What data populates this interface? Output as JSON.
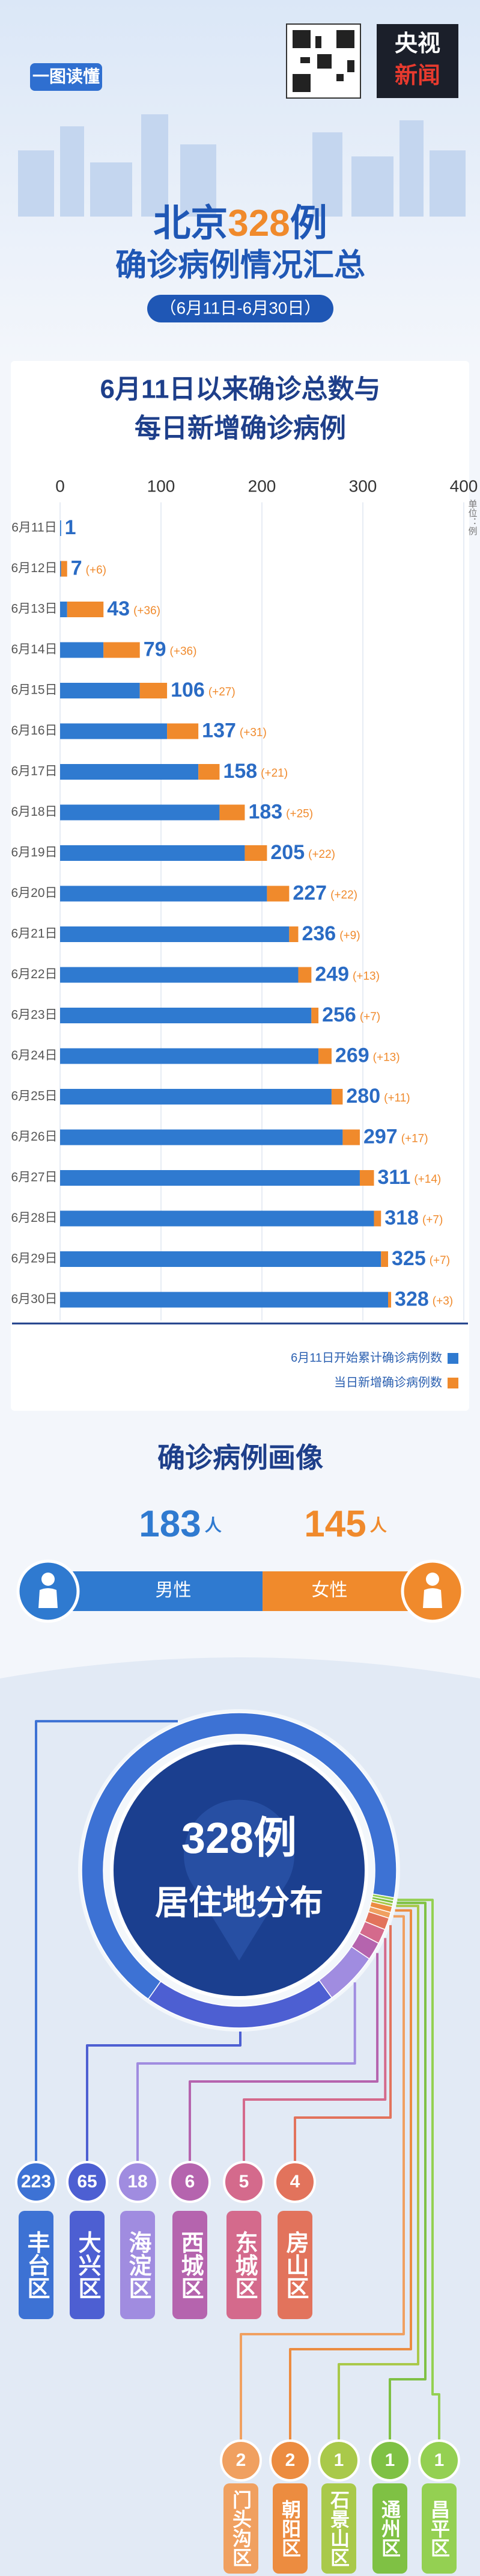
{
  "header": {
    "badge": "一图读懂",
    "logo_top": "央视",
    "logo_bottom": "新闻",
    "title_prefix": "北京",
    "title_number": "328",
    "title_suffix": "例",
    "subtitle": "确诊病例情况汇总",
    "date_range": "（6月11日-6月30日）"
  },
  "chart_data": {
    "type": "bar",
    "orientation": "horizontal",
    "stacked": true,
    "title": [
      "6月11日以来确诊总数与",
      "每日新增确诊病例"
    ],
    "unit": "单位：例",
    "categories": [
      "6月11日",
      "6月12日",
      "6月13日",
      "6月14日",
      "6月15日",
      "6月16日",
      "6月17日",
      "6月18日",
      "6月19日",
      "6月20日",
      "6月21日",
      "6月22日",
      "6月23日",
      "6月24日",
      "6月25日",
      "6月26日",
      "6月27日",
      "6月28日",
      "6月29日",
      "6月30日"
    ],
    "series": [
      {
        "name": "6月11日开始累计确诊病例数",
        "color": "#2f7ad0",
        "values": [
          1,
          1,
          7,
          43,
          79,
          106,
          137,
          158,
          183,
          205,
          227,
          236,
          249,
          256,
          269,
          280,
          297,
          311,
          318,
          325
        ]
      },
      {
        "name": "当日新增确诊病例数",
        "color": "#f08a2c",
        "values": [
          null,
          6,
          36,
          36,
          27,
          31,
          21,
          25,
          22,
          22,
          9,
          13,
          7,
          13,
          11,
          17,
          14,
          7,
          7,
          3
        ],
        "value_labels": [
          null,
          "(+6)",
          "(+36)",
          "(+36)",
          "(+27)",
          "(+31)",
          "(+21)",
          "(+25)",
          "(+22)",
          "(+22)",
          "(+9)",
          "(+13)",
          "(+7)",
          "(+13)",
          "(+11)",
          "(+17)",
          "(+14)",
          "(+7)",
          "(+7)",
          "(+3)"
        ]
      }
    ],
    "totals": [
      1,
      7,
      43,
      79,
      106,
      137,
      158,
      183,
      205,
      227,
      236,
      249,
      256,
      269,
      280,
      297,
      311,
      318,
      325,
      328
    ],
    "xlim": [
      0,
      400
    ],
    "xticks": [
      0,
      100,
      200,
      300,
      400
    ],
    "grid": true,
    "legend": "bottom-right"
  },
  "portrait": {
    "title": "确诊病例画像",
    "male": {
      "count": 183,
      "unit": "人",
      "label": "男性",
      "color": "#2f7ad0"
    },
    "female": {
      "count": 145,
      "unit": "人",
      "label": "女性",
      "color": "#f08a2c"
    }
  },
  "residence": {
    "total": "328例",
    "title": "居住地分布",
    "ring_color": "#3d72d4",
    "districts": [
      {
        "name": "丰台区",
        "value": 223,
        "color": "#3d72d4"
      },
      {
        "name": "大兴区",
        "value": 65,
        "color": "#4d5fd2"
      },
      {
        "name": "海淀区",
        "value": 18,
        "color": "#a08ce0"
      },
      {
        "name": "西城区",
        "value": 6,
        "color": "#b564ae"
      },
      {
        "name": "东城区",
        "value": 5,
        "color": "#d46a8c"
      },
      {
        "name": "房山区",
        "value": 4,
        "color": "#e2735c"
      },
      {
        "name": "门头沟区",
        "value": 2,
        "color": "#f0a060"
      },
      {
        "name": "朝阳区",
        "value": 2,
        "color": "#ec8c40"
      },
      {
        "name": "石景山区",
        "value": 1,
        "color": "#a9c94a"
      },
      {
        "name": "通州区",
        "value": 1,
        "color": "#7fc144"
      },
      {
        "name": "昌平区",
        "value": 1,
        "color": "#94d052"
      }
    ]
  }
}
